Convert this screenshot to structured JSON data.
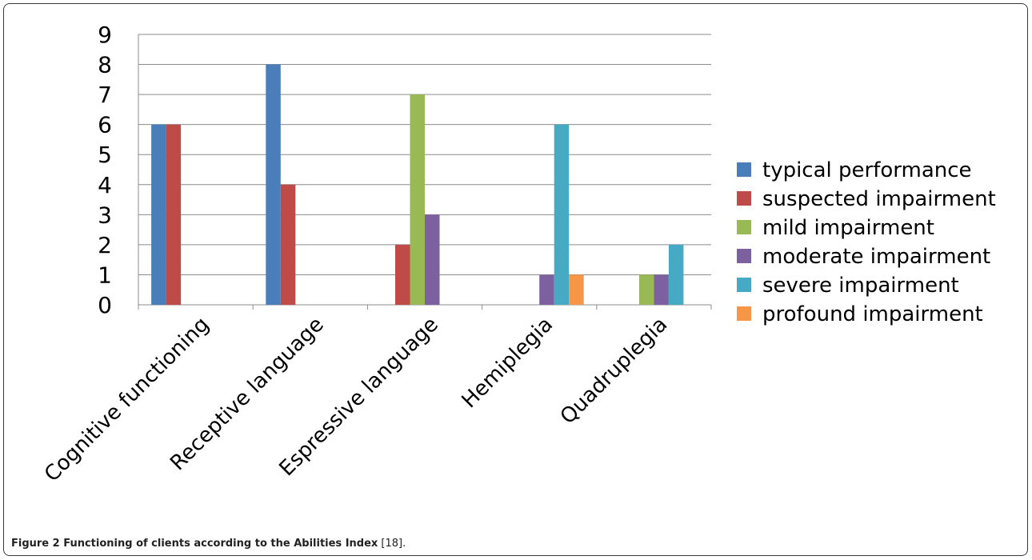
{
  "chart_data": {
    "type": "bar",
    "categories": [
      "Cognitive functioning",
      "Receptive language",
      "Espressive language",
      "Hemiplegia",
      "Quadruplegia"
    ],
    "series": [
      {
        "name": "typical performance",
        "color": "#4a7ebb",
        "values": [
          6,
          8,
          0,
          0,
          0
        ]
      },
      {
        "name": "suspected impairment",
        "color": "#be4b48",
        "values": [
          6,
          4,
          2,
          0,
          0
        ]
      },
      {
        "name": "mild impairment",
        "color": "#98b954",
        "values": [
          0,
          0,
          7,
          0,
          1
        ]
      },
      {
        "name": "moderate impairment",
        "color": "#7d60a0",
        "values": [
          0,
          0,
          3,
          1,
          1
        ]
      },
      {
        "name": "severe impairment",
        "color": "#46aac5",
        "values": [
          0,
          0,
          0,
          6,
          2
        ]
      },
      {
        "name": "profound impairment",
        "color": "#f79646",
        "values": [
          0,
          0,
          0,
          1,
          0
        ]
      }
    ],
    "ylim": [
      0,
      9
    ],
    "yticks": [
      "0",
      "1",
      "2",
      "3",
      "4",
      "5",
      "6",
      "7",
      "8",
      "9"
    ],
    "grid": true,
    "legend": "right"
  },
  "caption": {
    "label": "Figure 2 Functioning of clients according to the Abilities Index",
    "ref": " [18]."
  }
}
